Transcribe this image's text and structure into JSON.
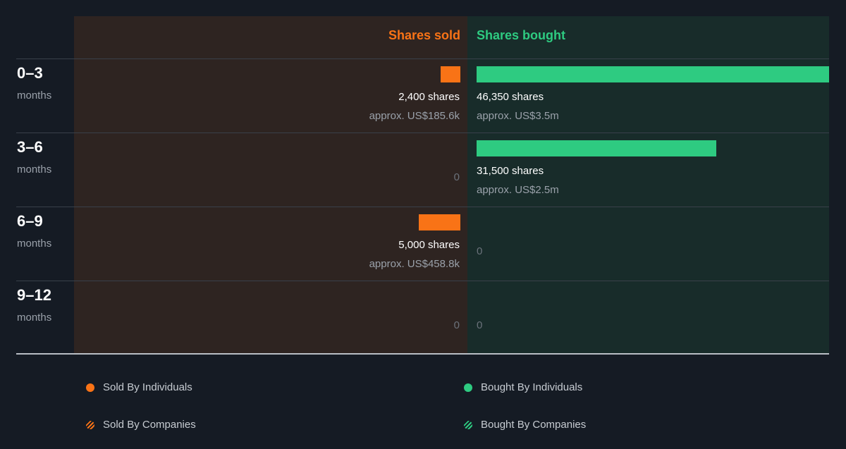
{
  "colors": {
    "sold": "#f97316",
    "bought": "#2ecb81"
  },
  "headers": {
    "sold": "Shares sold",
    "bought": "Shares bought"
  },
  "chart_data": {
    "type": "bar",
    "orientation": "horizontal-diverging",
    "categories": [
      "0–3",
      "3–6",
      "6–9",
      "9–12"
    ],
    "category_unit": "months",
    "series": [
      {
        "name": "Shares sold",
        "values": [
          2400,
          0,
          5000,
          0
        ]
      },
      {
        "name": "Shares bought",
        "values": [
          46350,
          31500,
          0,
          0
        ]
      }
    ],
    "max": 46350
  },
  "rows": [
    {
      "period": "0–3",
      "unit": "months",
      "sold": {
        "shares": 2400,
        "label": "2,400 shares",
        "approx": "approx. US$185.6k"
      },
      "bought": {
        "shares": 46350,
        "label": "46,350 shares",
        "approx": "approx. US$3.5m"
      }
    },
    {
      "period": "3–6",
      "unit": "months",
      "sold": {
        "shares": 0,
        "label": "0"
      },
      "bought": {
        "shares": 31500,
        "label": "31,500 shares",
        "approx": "approx. US$2.5m"
      }
    },
    {
      "period": "6–9",
      "unit": "months",
      "sold": {
        "shares": 5000,
        "label": "5,000 shares",
        "approx": "approx. US$458.8k"
      },
      "bought": {
        "shares": 0,
        "label": "0"
      }
    },
    {
      "period": "9–12",
      "unit": "months",
      "sold": {
        "shares": 0,
        "label": "0"
      },
      "bought": {
        "shares": 0,
        "label": "0"
      }
    }
  ],
  "legend": [
    {
      "label": "Sold By Individuals",
      "icon": "dot-icon",
      "color": "#f97316"
    },
    {
      "label": "Bought By Individuals",
      "icon": "dot-icon",
      "color": "#2ecb81"
    },
    {
      "label": "Sold By Companies",
      "icon": "hatched-dot-icon",
      "color": "#f97316"
    },
    {
      "label": "Bought By Companies",
      "icon": "hatched-dot-icon",
      "color": "#2ecb81"
    }
  ]
}
